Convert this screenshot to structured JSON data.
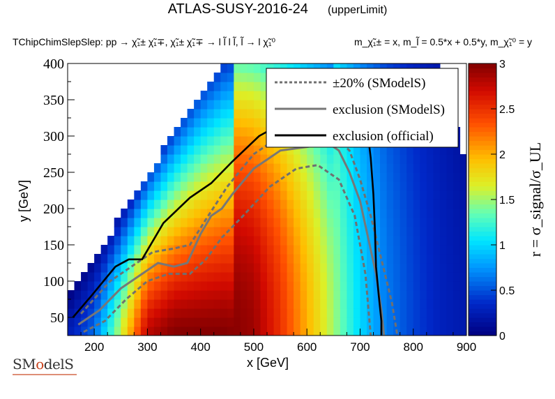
{
  "header": {
    "title": "ATLAS-SUSY-2016-24",
    "title_suffix": "(upperLimit)",
    "process": "TChipChimSlepSlep: pp   → χ̃₁± χ̃₁∓, χ̃₁± χ̃₁∓ → l l̃ l l̃, l̃ → l χ̃₁⁰",
    "mass_relation": "m_χ̃₁± = x, m_l̃ = 0.5*x + 0.5*y, m_χ̃₁⁰ = y"
  },
  "logo": {
    "text_before": "SM",
    "text_o": "o",
    "text_after": "delS"
  },
  "chart_data": {
    "type": "heatmap",
    "title": "ATLAS-SUSY-2016-24",
    "xlabel": "x [GeV]",
    "ylabel": "y [GeV]",
    "zlabel": "r = σ_signal/σ_UL",
    "xlim": [
      150,
      900
    ],
    "ylim": [
      25,
      400
    ],
    "zlim": [
      0,
      3
    ],
    "x_ticks": [
      "200",
      "300",
      "400",
      "500",
      "600",
      "700",
      "800",
      "900"
    ],
    "y_ticks": [
      "50",
      "100",
      "150",
      "200",
      "250",
      "300",
      "350",
      "400"
    ],
    "z_ticks": [
      "0",
      "0.5",
      "1",
      "1.5",
      "2",
      "2.5",
      "3"
    ],
    "legend": {
      "position": "top-right",
      "entries": [
        {
          "label": "±20% (SModelS)",
          "style": "dotted",
          "color": "#707070"
        },
        {
          "label": "exclusion (SModelS)",
          "style": "solid",
          "color": "#777777"
        },
        {
          "label": "exclusion (official)",
          "style": "solid",
          "color": "#000000"
        }
      ]
    },
    "r_profile_x": [
      150,
      200,
      250,
      300,
      350,
      400,
      450,
      500,
      550,
      600,
      650,
      700,
      750,
      800,
      850,
      900
    ],
    "r_profile_values": [
      0.25,
      0.6,
      1.6,
      2.8,
      3.0,
      3.0,
      3.0,
      2.9,
      2.5,
      2.0,
      1.5,
      1.0,
      0.65,
      0.45,
      0.3,
      0.22
    ],
    "upper_edge_x": [
      150,
      200,
      250,
      300,
      350,
      400,
      450,
      500,
      550,
      600,
      650,
      700,
      750,
      800,
      850,
      900
    ],
    "upper_edge_y": [
      75,
      130,
      190,
      245,
      305,
      360,
      400,
      400,
      400,
      400,
      400,
      400,
      400,
      400,
      400,
      255
    ],
    "official_exclusion": {
      "x": [
        160,
        195,
        240,
        265,
        290,
        330,
        380,
        420,
        460,
        510,
        560,
        610,
        660,
        690,
        715,
        720,
        725,
        728,
        730,
        735,
        740,
        740
      ],
      "y": [
        50,
        80,
        120,
        130,
        130,
        180,
        215,
        235,
        265,
        300,
        320,
        330,
        330,
        320,
        300,
        270,
        220,
        170,
        120,
        80,
        45,
        25
      ]
    },
    "smodels_exclusion": {
      "x": [
        170,
        210,
        250,
        290,
        320,
        350,
        375,
        400,
        420,
        440,
        460,
        500,
        550,
        600,
        640,
        660,
        680,
        700,
        715,
        730,
        740,
        745
      ],
      "y": [
        40,
        60,
        90,
        110,
        125,
        120,
        125,
        165,
        190,
        200,
        220,
        255,
        280,
        285,
        290,
        280,
        250,
        210,
        160,
        110,
        60,
        25
      ]
    },
    "smodels_band": {
      "upper_x": [
        175,
        230,
        270,
        310,
        350,
        380,
        410,
        450,
        500,
        550,
        600,
        650,
        680,
        700,
        720,
        740,
        760,
        770
      ],
      "upper_y": [
        55,
        100,
        120,
        140,
        145,
        150,
        185,
        230,
        275,
        300,
        305,
        300,
        280,
        240,
        190,
        130,
        70,
        25
      ],
      "lower_x": [
        180,
        220,
        260,
        300,
        340,
        380,
        410,
        440,
        480,
        530,
        580,
        620,
        660,
        690,
        710,
        720
      ],
      "lower_y": [
        30,
        45,
        75,
        100,
        110,
        110,
        130,
        160,
        190,
        230,
        255,
        260,
        240,
        190,
        110,
        25
      ]
    }
  }
}
